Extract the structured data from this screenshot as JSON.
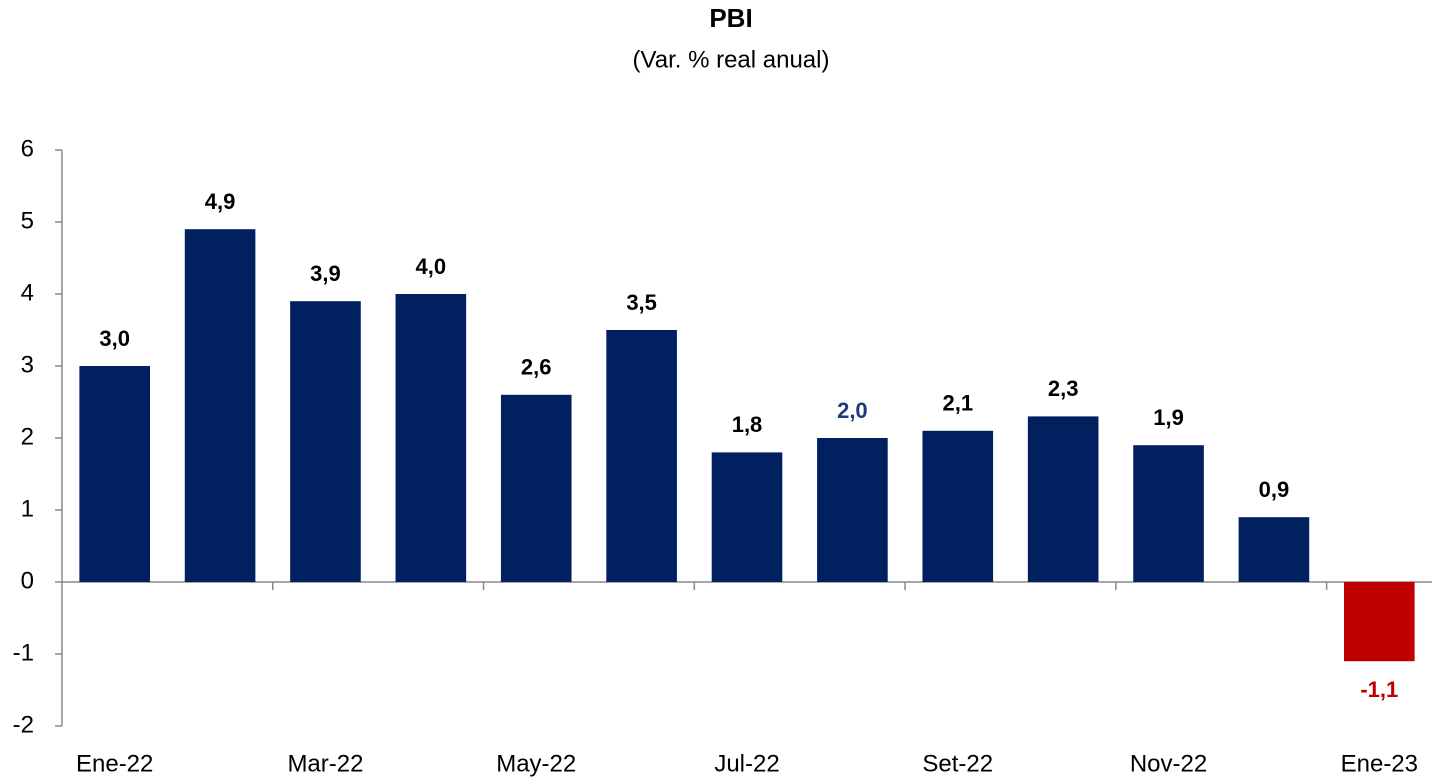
{
  "chart_data": {
    "type": "bar",
    "title": "PBI",
    "subtitle": "(Var. % real anual)",
    "categories": [
      "Ene-22",
      null,
      "Mar-22",
      null,
      "May-22",
      null,
      "Jul-22",
      null,
      "Set-22",
      null,
      "Nov-22",
      null,
      "Ene-23"
    ],
    "values": [
      3.0,
      4.9,
      3.9,
      4.0,
      2.6,
      3.5,
      1.8,
      2.0,
      2.1,
      2.3,
      1.9,
      0.9,
      -1.1
    ],
    "value_labels": [
      "3,0",
      "4,9",
      "3,9",
      "4,0",
      "2,6",
      "3,5",
      "1,8",
      "2,0",
      "2,1",
      "2,3",
      "1,9",
      "0,9",
      "-1,1"
    ],
    "colors": [
      "#002060",
      "#002060",
      "#002060",
      "#002060",
      "#002060",
      "#002060",
      "#002060",
      "#002060",
      "#002060",
      "#002060",
      "#002060",
      "#002060",
      "#c00000"
    ],
    "label_colors": [
      "#000000",
      "#000000",
      "#000000",
      "#000000",
      "#000000",
      "#000000",
      "#000000",
      "#1f3a7a",
      "#000000",
      "#000000",
      "#000000",
      "#000000",
      "#c00000"
    ],
    "ylim": [
      -2,
      6
    ],
    "yticks": [
      -2,
      -1,
      0,
      1,
      2,
      3,
      4,
      5,
      6
    ],
    "grid": false
  }
}
